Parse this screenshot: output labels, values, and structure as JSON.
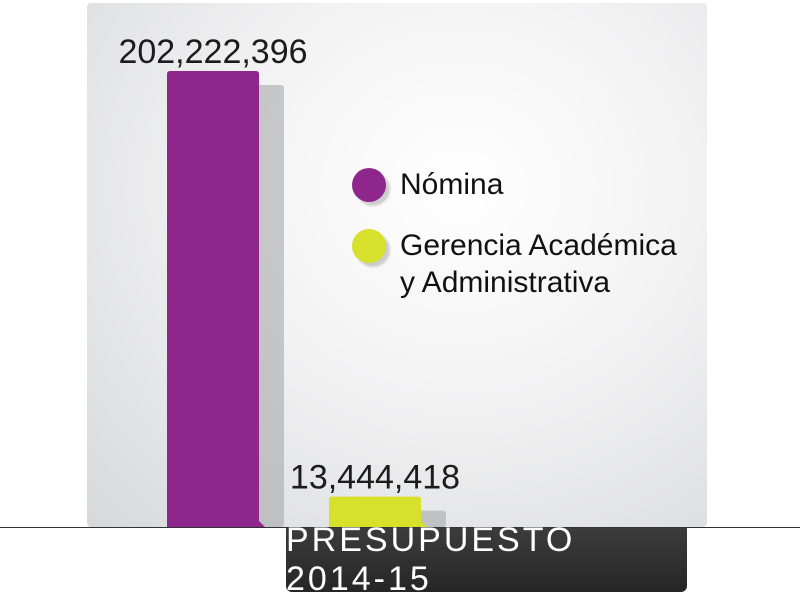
{
  "chart_data": {
    "type": "bar",
    "title": "PRESUPUESTO 2014-15",
    "categories": [
      "Nómina",
      "Gerencia Académica y Administrativa"
    ],
    "values": [
      202222396,
      13444418
    ],
    "value_labels": [
      "202,222,396",
      "13,444,418"
    ],
    "colors": [
      "#8e268c",
      "#d7e02a"
    ],
    "legend": {
      "placement": "right",
      "entries": [
        {
          "label": "Nómina",
          "color": "#8e268c"
        },
        {
          "label": "Gerencia Académica y Administrativa",
          "color": "#d7e02a"
        }
      ]
    },
    "ylim": [
      0,
      202222396
    ],
    "grid": false
  }
}
